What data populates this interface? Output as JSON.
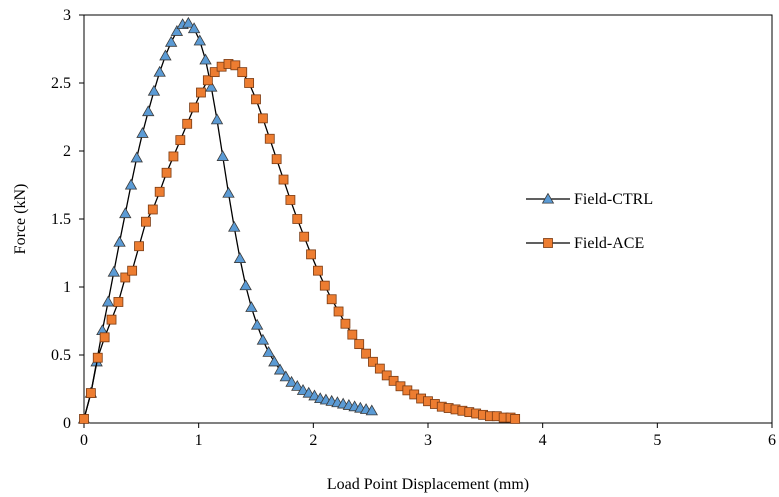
{
  "chart_data": {
    "type": "line",
    "title": "",
    "xlabel": "Load Point Displacement (mm)",
    "ylabel": "Force (kN)",
    "xlim": [
      0,
      6
    ],
    "ylim": [
      0,
      3
    ],
    "x_ticks": [
      "0",
      "1",
      "2",
      "3",
      "4",
      "5",
      "6"
    ],
    "y_ticks": [
      "0",
      "0.5",
      "1",
      "1.5",
      "2",
      "2.5",
      "3"
    ],
    "grid": false,
    "legend_position": "right",
    "series": [
      {
        "name": "Field-CTRL",
        "marker": "triangle",
        "color": "#5b9bd5",
        "x": [
          0.0,
          0.06,
          0.11,
          0.16,
          0.21,
          0.26,
          0.31,
          0.36,
          0.41,
          0.46,
          0.51,
          0.56,
          0.61,
          0.66,
          0.71,
          0.76,
          0.81,
          0.86,
          0.91,
          0.96,
          1.01,
          1.06,
          1.11,
          1.16,
          1.21,
          1.26,
          1.31,
          1.36,
          1.41,
          1.46,
          1.51,
          1.56,
          1.61,
          1.66,
          1.71,
          1.76,
          1.81,
          1.86,
          1.91,
          1.96,
          2.01,
          2.06,
          2.11,
          2.16,
          2.21,
          2.26,
          2.31,
          2.36,
          2.41,
          2.46,
          2.51
        ],
        "y": [
          0.03,
          0.22,
          0.45,
          0.68,
          0.89,
          1.11,
          1.33,
          1.54,
          1.75,
          1.95,
          2.13,
          2.29,
          2.44,
          2.58,
          2.7,
          2.8,
          2.88,
          2.93,
          2.94,
          2.9,
          2.81,
          2.67,
          2.47,
          2.23,
          1.96,
          1.69,
          1.44,
          1.21,
          1.01,
          0.85,
          0.72,
          0.61,
          0.52,
          0.45,
          0.39,
          0.34,
          0.3,
          0.27,
          0.24,
          0.22,
          0.2,
          0.18,
          0.17,
          0.16,
          0.15,
          0.14,
          0.13,
          0.12,
          0.11,
          0.1,
          0.09
        ]
      },
      {
        "name": "Field-ACE",
        "marker": "square",
        "color": "#ed7d31",
        "x": [
          0.0,
          0.06,
          0.12,
          0.18,
          0.24,
          0.3,
          0.36,
          0.42,
          0.48,
          0.54,
          0.6,
          0.66,
          0.72,
          0.78,
          0.84,
          0.9,
          0.96,
          1.02,
          1.08,
          1.14,
          1.2,
          1.26,
          1.32,
          1.38,
          1.44,
          1.5,
          1.56,
          1.62,
          1.68,
          1.74,
          1.8,
          1.86,
          1.92,
          1.98,
          2.04,
          2.1,
          2.16,
          2.22,
          2.28,
          2.34,
          2.4,
          2.46,
          2.52,
          2.58,
          2.64,
          2.7,
          2.76,
          2.82,
          2.88,
          2.94,
          3.0,
          3.06,
          3.12,
          3.18,
          3.24,
          3.3,
          3.36,
          3.42,
          3.48,
          3.54,
          3.6,
          3.66,
          3.72,
          3.76
        ],
        "y": [
          0.03,
          0.22,
          0.48,
          0.63,
          0.76,
          0.89,
          1.07,
          1.12,
          1.3,
          1.48,
          1.57,
          1.7,
          1.84,
          1.96,
          2.08,
          2.2,
          2.32,
          2.43,
          2.52,
          2.58,
          2.62,
          2.64,
          2.63,
          2.58,
          2.5,
          2.38,
          2.24,
          2.09,
          1.94,
          1.79,
          1.64,
          1.5,
          1.37,
          1.24,
          1.12,
          1.01,
          0.91,
          0.82,
          0.73,
          0.65,
          0.58,
          0.51,
          0.45,
          0.4,
          0.35,
          0.31,
          0.27,
          0.24,
          0.21,
          0.18,
          0.16,
          0.14,
          0.12,
          0.11,
          0.1,
          0.09,
          0.08,
          0.07,
          0.06,
          0.05,
          0.05,
          0.04,
          0.04,
          0.03
        ]
      }
    ]
  }
}
